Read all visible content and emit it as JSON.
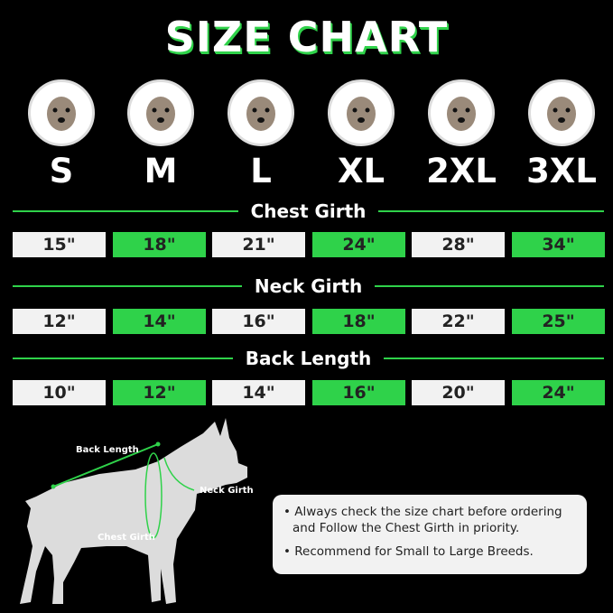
{
  "title": "SIZE CHART",
  "sizes": [
    "S",
    "M",
    "L",
    "XL",
    "2XL",
    "3XL"
  ],
  "dog_breeds": [
    "chihuahua",
    "shih-tzu",
    "french-bulldog",
    "beagle",
    "border-collie",
    "doberman"
  ],
  "sections": [
    {
      "label": "Chest Girth",
      "values": [
        "15\"",
        "18\"",
        "21\"",
        "24\"",
        "28\"",
        "34\""
      ]
    },
    {
      "label": "Neck Girth",
      "values": [
        "12\"",
        "14\"",
        "16\"",
        "18\"",
        "22\"",
        "25\""
      ]
    },
    {
      "label": "Back Length",
      "values": [
        "10\"",
        "12\"",
        "14\"",
        "16\"",
        "20\"",
        "24\""
      ]
    }
  ],
  "diagram": {
    "back_length": "Back Length",
    "neck_girth": "Neck Girth",
    "chest_girth": "Chest Girth"
  },
  "notes": [
    "Always check the size chart before ordering and Follow the Chest Girth in priority.",
    "Recommend for Small to Large Breeds."
  ],
  "colors": {
    "accent": "#2fd24a",
    "cell_light": "#f2f2f2",
    "background": "#000000"
  }
}
